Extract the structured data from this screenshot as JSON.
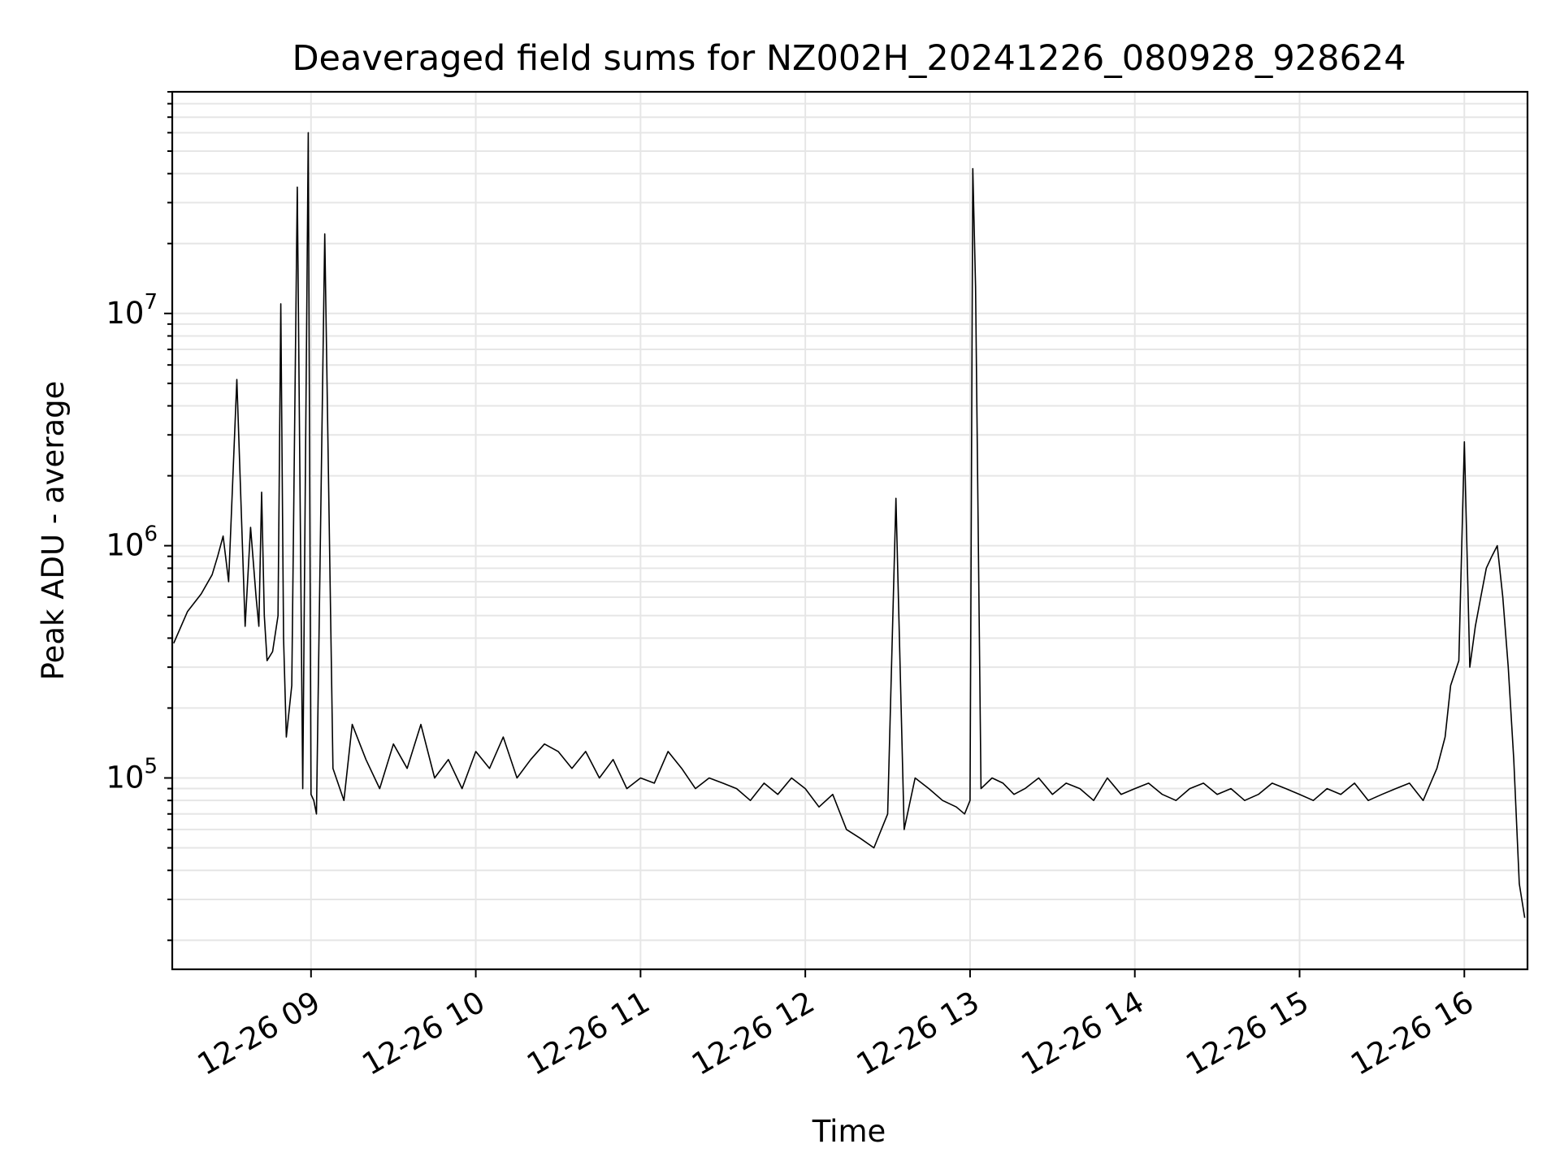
{
  "chart_data": {
    "type": "line",
    "title": "Deaveraged field sums for NZ002H_20241226_080928_928624",
    "xlabel": "Time",
    "ylabel": "Peak ADU - average",
    "yscale": "log",
    "grid": true,
    "legend": "none",
    "line_color": "#000000",
    "grid_color": "#e6e6e6",
    "xlim": [
      "2024-12-26 08:09:28",
      "2024-12-26 16:23:00"
    ],
    "ylim": [
      15000,
      90000000
    ],
    "x_ticks": [
      {
        "t": "2024-12-26 09:00",
        "label": "12-26 09"
      },
      {
        "t": "2024-12-26 10:00",
        "label": "12-26 10"
      },
      {
        "t": "2024-12-26 11:00",
        "label": "12-26 11"
      },
      {
        "t": "2024-12-26 12:00",
        "label": "12-26 12"
      },
      {
        "t": "2024-12-26 13:00",
        "label": "12-26 13"
      },
      {
        "t": "2024-12-26 14:00",
        "label": "12-26 14"
      },
      {
        "t": "2024-12-26 15:00",
        "label": "12-26 15"
      },
      {
        "t": "2024-12-26 16:00",
        "label": "12-26 16"
      }
    ],
    "y_ticks": [
      {
        "value": 100000,
        "base": "10",
        "exp": "5"
      },
      {
        "value": 1000000,
        "base": "10",
        "exp": "6"
      },
      {
        "value": 10000000,
        "base": "10",
        "exp": "7"
      }
    ],
    "series": [
      {
        "x": [
          "2024-12-26 08:10",
          "2024-12-26 08:15",
          "2024-12-26 08:20",
          "2024-12-26 08:24",
          "2024-12-26 08:26",
          "2024-12-26 08:28",
          "2024-12-26 08:30",
          "2024-12-26 08:33",
          "2024-12-26 08:36",
          "2024-12-26 08:38",
          "2024-12-26 08:40",
          "2024-12-26 08:41",
          "2024-12-26 08:42",
          "2024-12-26 08:43",
          "2024-12-26 08:44",
          "2024-12-26 08:46",
          "2024-12-26 08:48",
          "2024-12-26 08:49",
          "2024-12-26 08:50",
          "2024-12-26 08:51",
          "2024-12-26 08:53",
          "2024-12-26 08:55",
          "2024-12-26 08:57",
          "2024-12-26 08:59",
          "2024-12-26 09:00",
          "2024-12-26 09:01",
          "2024-12-26 09:02",
          "2024-12-26 09:05",
          "2024-12-26 09:08",
          "2024-12-26 09:12",
          "2024-12-26 09:15",
          "2024-12-26 09:20",
          "2024-12-26 09:25",
          "2024-12-26 09:30",
          "2024-12-26 09:35",
          "2024-12-26 09:40",
          "2024-12-26 09:45",
          "2024-12-26 09:50",
          "2024-12-26 09:55",
          "2024-12-26 10:00",
          "2024-12-26 10:05",
          "2024-12-26 10:10",
          "2024-12-26 10:15",
          "2024-12-26 10:20",
          "2024-12-26 10:25",
          "2024-12-26 10:30",
          "2024-12-26 10:35",
          "2024-12-26 10:40",
          "2024-12-26 10:45",
          "2024-12-26 10:50",
          "2024-12-26 10:55",
          "2024-12-26 11:00",
          "2024-12-26 11:05",
          "2024-12-26 11:10",
          "2024-12-26 11:15",
          "2024-12-26 11:20",
          "2024-12-26 11:25",
          "2024-12-26 11:30",
          "2024-12-26 11:35",
          "2024-12-26 11:40",
          "2024-12-26 11:45",
          "2024-12-26 11:50",
          "2024-12-26 11:55",
          "2024-12-26 12:00",
          "2024-12-26 12:05",
          "2024-12-26 12:10",
          "2024-12-26 12:15",
          "2024-12-26 12:20",
          "2024-12-26 12:25",
          "2024-12-26 12:30",
          "2024-12-26 12:33",
          "2024-12-26 12:36",
          "2024-12-26 12:40",
          "2024-12-26 12:45",
          "2024-12-26 12:50",
          "2024-12-26 12:55",
          "2024-12-26 12:58",
          "2024-12-26 13:00",
          "2024-12-26 13:01",
          "2024-12-26 13:02",
          "2024-12-26 13:04",
          "2024-12-26 13:08",
          "2024-12-26 13:12",
          "2024-12-26 13:16",
          "2024-12-26 13:20",
          "2024-12-26 13:25",
          "2024-12-26 13:30",
          "2024-12-26 13:35",
          "2024-12-26 13:40",
          "2024-12-26 13:45",
          "2024-12-26 13:50",
          "2024-12-26 13:55",
          "2024-12-26 14:00",
          "2024-12-26 14:05",
          "2024-12-26 14:10",
          "2024-12-26 14:15",
          "2024-12-26 14:20",
          "2024-12-26 14:25",
          "2024-12-26 14:30",
          "2024-12-26 14:35",
          "2024-12-26 14:40",
          "2024-12-26 14:45",
          "2024-12-26 14:50",
          "2024-12-26 14:55",
          "2024-12-26 15:00",
          "2024-12-26 15:05",
          "2024-12-26 15:10",
          "2024-12-26 15:15",
          "2024-12-26 15:20",
          "2024-12-26 15:25",
          "2024-12-26 15:30",
          "2024-12-26 15:35",
          "2024-12-26 15:40",
          "2024-12-26 15:45",
          "2024-12-26 15:50",
          "2024-12-26 15:53",
          "2024-12-26 15:55",
          "2024-12-26 15:58",
          "2024-12-26 16:00",
          "2024-12-26 16:02",
          "2024-12-26 16:04",
          "2024-12-26 16:06",
          "2024-12-26 16:08",
          "2024-12-26 16:10",
          "2024-12-26 16:12",
          "2024-12-26 16:14",
          "2024-12-26 16:16",
          "2024-12-26 16:18",
          "2024-12-26 16:20",
          "2024-12-26 16:22"
        ],
        "y": [
          380000,
          520000,
          620000,
          750000,
          900000,
          1100000,
          700000,
          5200000,
          450000,
          1200000,
          600000,
          450000,
          1700000,
          500000,
          320000,
          350000,
          500000,
          11000000,
          400000,
          150000,
          250000,
          35000000,
          90000,
          60000000,
          85000,
          80000,
          70000,
          22000000,
          110000,
          80000,
          170000,
          120000,
          90000,
          140000,
          110000,
          170000,
          100000,
          120000,
          90000,
          130000,
          110000,
          150000,
          100000,
          120000,
          140000,
          130000,
          110000,
          130000,
          100000,
          120000,
          90000,
          100000,
          95000,
          130000,
          110000,
          90000,
          100000,
          95000,
          90000,
          80000,
          95000,
          85000,
          100000,
          90000,
          75000,
          85000,
          60000,
          55000,
          50000,
          70000,
          1600000,
          60000,
          100000,
          90000,
          80000,
          75000,
          70000,
          80000,
          42000000,
          13000000,
          90000,
          100000,
          95000,
          85000,
          90000,
          100000,
          85000,
          95000,
          90000,
          80000,
          100000,
          85000,
          90000,
          95000,
          85000,
          80000,
          90000,
          95000,
          85000,
          90000,
          80000,
          85000,
          95000,
          90000,
          85000,
          80000,
          90000,
          85000,
          95000,
          80000,
          85000,
          90000,
          95000,
          80000,
          110000,
          150000,
          250000,
          320000,
          2800000,
          300000,
          450000,
          600000,
          800000,
          900000,
          1000000,
          600000,
          300000,
          120000,
          35000,
          25000
        ]
      }
    ]
  }
}
